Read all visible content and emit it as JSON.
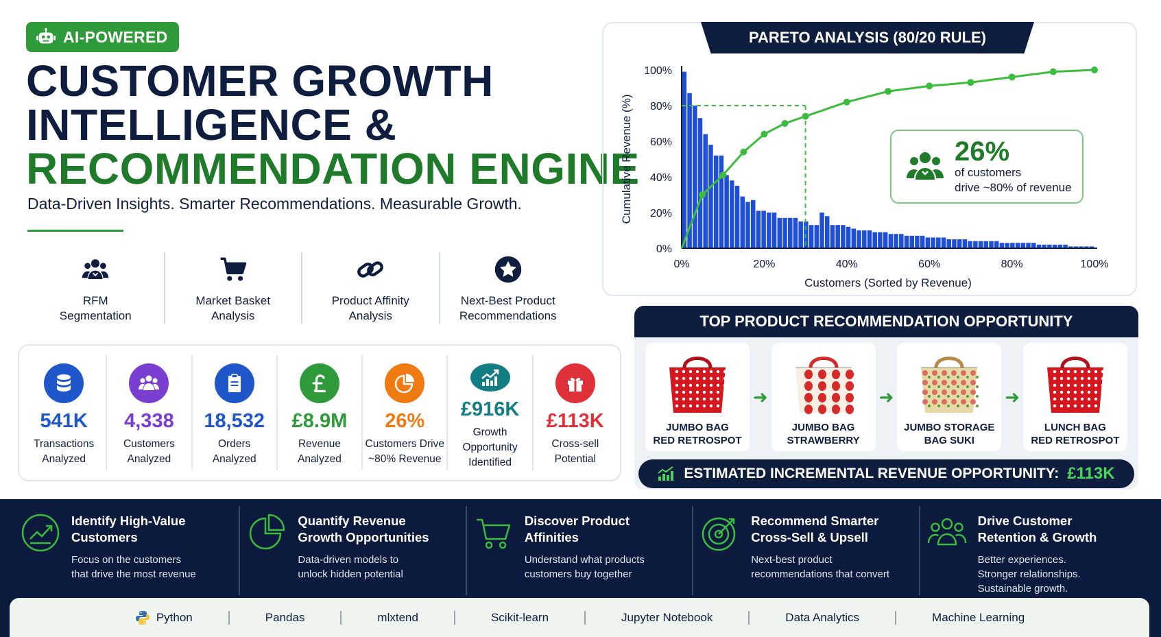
{
  "badge": {
    "label": "AI-POWERED",
    "icon": "robot-icon"
  },
  "hero": {
    "title_line1": "CUSTOMER GROWTH",
    "title_line2": "INTELLIGENCE &",
    "title_line3": "RECOMMENDATION ENGINE",
    "subtitle": "Data-Driven Insights. Smarter Recommendations. Measurable Growth."
  },
  "features": [
    {
      "line1": "RFM",
      "line2": "Segmentation",
      "icon": "people-icon"
    },
    {
      "line1": "Market Basket",
      "line2": "Analysis",
      "icon": "cart-icon"
    },
    {
      "line1": "Product Affinity",
      "line2": "Analysis",
      "icon": "link-icon"
    },
    {
      "line1": "Next-Best Product",
      "line2": "Recommendations",
      "icon": "star-icon"
    }
  ],
  "stats": [
    {
      "value": "541K",
      "line1": "Transactions",
      "line2": "Analyzed",
      "color": "#1f56c9",
      "icon": "database-icon"
    },
    {
      "value": "4,338",
      "line1": "Customers",
      "line2": "Analyzed",
      "color": "#7a3fd1",
      "icon": "users-icon"
    },
    {
      "value": "18,532",
      "line1": "Orders",
      "line2": "Analyzed",
      "color": "#1f56c9",
      "icon": "clipboard-icon"
    },
    {
      "value": "£8.9M",
      "line1": "Revenue",
      "line2": "Analyzed",
      "color": "#2e9a3a",
      "icon": "pound-icon"
    },
    {
      "value": "26%",
      "line1": "Customers Drive",
      "line2": "~80% Revenue",
      "color": "#f07a12",
      "icon": "pie-icon"
    },
    {
      "value": "£916K",
      "line1": "Growth Opportunity",
      "line2": "Identified",
      "color": "#137d84",
      "icon": "growth-chart-icon"
    },
    {
      "value": "£113K",
      "line1": "Cross-sell",
      "line2": "Potential",
      "color": "#e0303a",
      "icon": "gift-icon"
    }
  ],
  "pareto": {
    "title": "PARETO ANALYSIS (80/20 RULE)",
    "callout": {
      "value": "26%",
      "line1": "of customers",
      "line2": "drive ~80% of revenue",
      "icon": "customer-group-icon"
    }
  },
  "chart_data": {
    "type": "bar",
    "title": "PARETO ANALYSIS (80/20 RULE)",
    "xlabel": "Customers (Sorted by Revenue)",
    "ylabel": "Cumulative Revenue (%)",
    "xlim": [
      0,
      100
    ],
    "ylim": [
      0,
      100
    ],
    "x_ticks": [
      "0%",
      "20%",
      "40%",
      "60%",
      "80%",
      "100%"
    ],
    "y_ticks": [
      "0%",
      "20%",
      "40%",
      "60%",
      "80%",
      "100%"
    ],
    "bars": [
      99,
      87,
      80,
      73,
      64,
      58,
      52,
      52,
      41,
      38,
      35,
      29,
      26,
      27,
      21,
      21,
      20,
      20,
      17,
      17,
      17,
      17,
      15,
      15,
      13,
      13,
      20,
      18,
      13,
      13,
      13,
      12,
      11,
      10,
      10,
      10,
      9,
      9,
      9,
      8,
      8,
      8,
      7,
      7,
      7,
      7,
      6,
      6,
      6,
      6,
      5,
      5,
      5,
      5,
      4,
      4,
      4,
      4,
      4,
      4,
      3,
      3,
      3,
      3,
      3,
      3,
      3,
      2,
      2,
      2,
      2,
      2,
      2,
      1,
      1,
      1,
      1,
      1
    ],
    "cumulative_line": {
      "x": [
        0,
        5,
        10,
        15,
        20,
        25,
        30,
        40,
        50,
        60,
        70,
        80,
        90,
        100
      ],
      "y": [
        0,
        30,
        41,
        54,
        64,
        70,
        74,
        82,
        88,
        91,
        93,
        96,
        99,
        100
      ]
    },
    "threshold": {
      "x": 30,
      "y": 80
    },
    "grid": false
  },
  "recommendation": {
    "title": "TOP PRODUCT RECOMMENDATION OPPORTUNITY",
    "products": [
      {
        "line1": "JUMBO BAG",
        "line2": "RED RETROSPOT",
        "bag_color": "#d4181f",
        "pattern": "dots"
      },
      {
        "line1": "JUMBO BAG",
        "line2": "STRAWBERRY",
        "bag_color": "#f7efe3",
        "pattern": "strawberry"
      },
      {
        "line1": "JUMBO STORAGE",
        "line2": "BAG SUKI",
        "bag_color": "#e6d9a5",
        "pattern": "suki"
      },
      {
        "line1": "LUNCH BAG",
        "line2": "RED RETROSPOT",
        "bag_color": "#d4181f",
        "pattern": "dots"
      }
    ],
    "footer_label": "ESTIMATED INCREMENTAL REVENUE OPPORTUNITY:",
    "footer_value": "£113K"
  },
  "benefits": [
    {
      "title1": "Identify High-Value",
      "title2": "Customers",
      "desc": [
        "Focus on the customers",
        "that drive the most revenue"
      ],
      "icon": "trend-up-icon"
    },
    {
      "title1": "Quantify Revenue",
      "title2": "Growth Opportunities",
      "desc": [
        "Data-driven models to",
        "unlock hidden potential"
      ],
      "icon": "pie-chart-icon"
    },
    {
      "title1": "Discover Product",
      "title2": "Affinities",
      "desc": [
        "Understand what products",
        "customers buy together"
      ],
      "icon": "shopping-cart-icon"
    },
    {
      "title1": "Recommend Smarter",
      "title2": "Cross-Sell & Upsell",
      "desc": [
        "Next-best product",
        "recommendations that convert"
      ],
      "icon": "target-icon"
    },
    {
      "title1": "Drive Customer",
      "title2": "Retention & Growth",
      "desc": [
        "Better experiences.",
        "Stronger relationships.",
        "Sustainable growth."
      ],
      "icon": "team-icon"
    }
  ],
  "tech_stack": [
    "Python",
    "Pandas",
    "mlxtend",
    "Scikit-learn",
    "Jupyter Notebook",
    "Data Analytics",
    "Machine Learning"
  ],
  "colors": {
    "navy": "#0f1d3f",
    "green": "#2e9a3a",
    "dark_green": "#1f7a2a",
    "bar_blue": "#1f4fd8",
    "line_green": "#3dbb3d"
  }
}
